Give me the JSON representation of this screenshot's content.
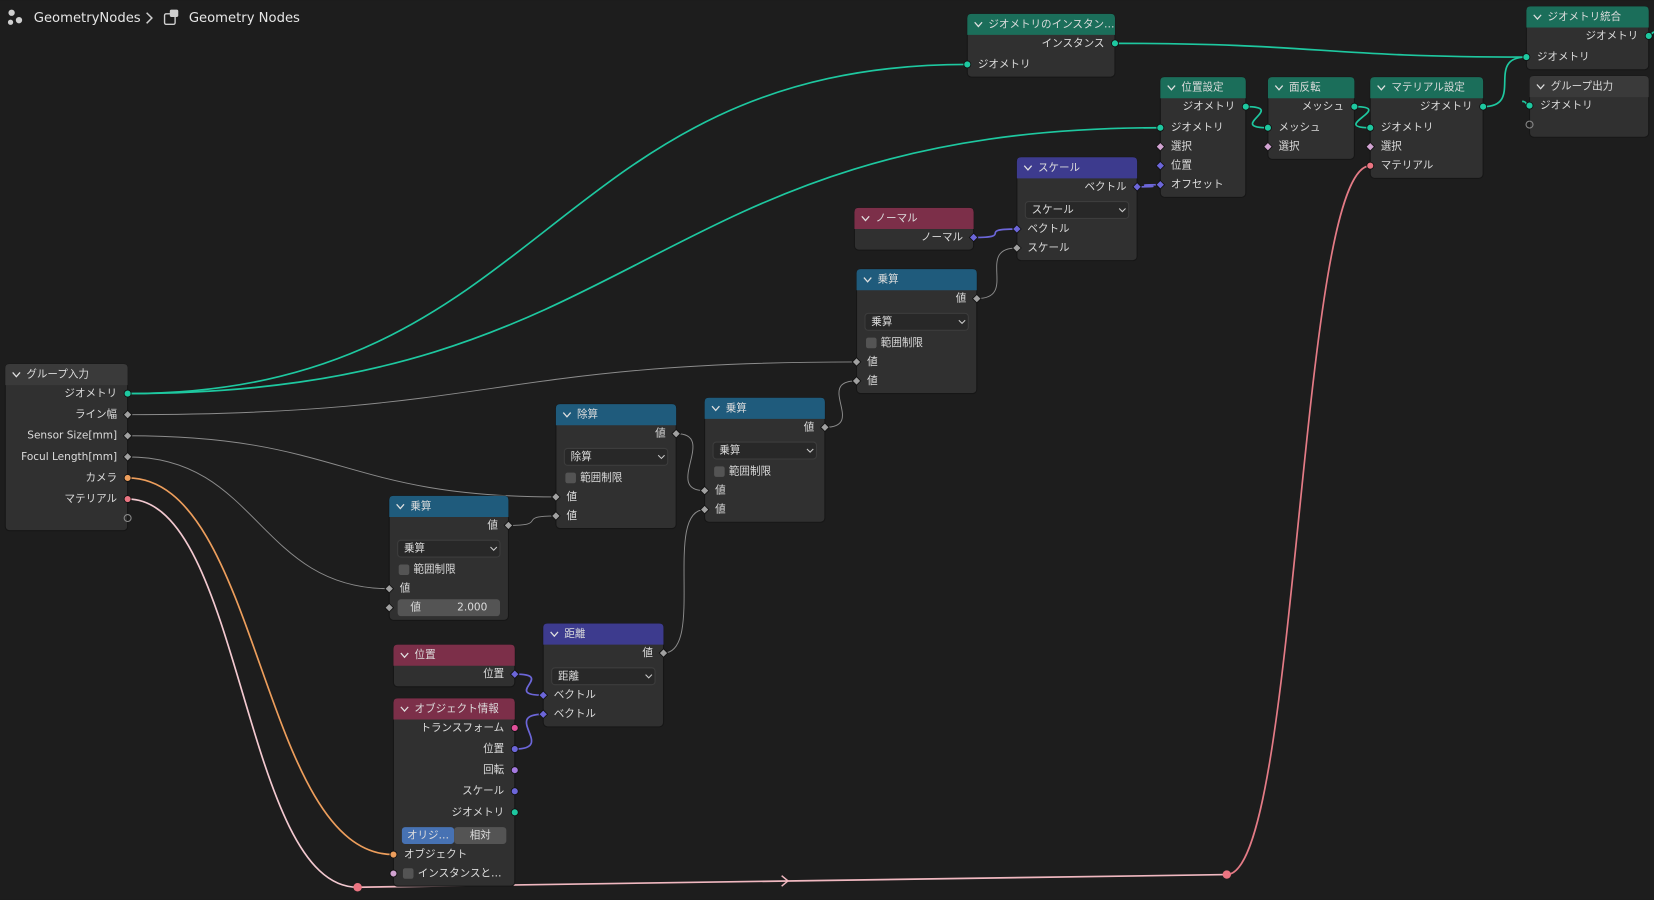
{
  "breadcrumb": [
    "GeometryNodes",
    "Geometry Nodes"
  ],
  "nodes": [
    {
      "title": "グループ入力",
      "outputs": [
        "ジオメトリ",
        "ライン幅",
        "Sensor Size[mm]",
        "Focul Length[mm]",
        "カメラ",
        "マテリアル"
      ]
    },
    {
      "title": "乗算",
      "outputs": [
        "値"
      ],
      "dropdown": "乗算",
      "checkbox": "範囲制限",
      "inputs": [
        "値"
      ],
      "field": {
        "label": "値",
        "value": "2.000"
      }
    },
    {
      "title": "除算",
      "outputs": [
        "値"
      ],
      "dropdown": "除算",
      "checkbox": "範囲制限",
      "inputs": [
        "値",
        "値"
      ]
    },
    {
      "title": "乗算",
      "outputs": [
        "値"
      ],
      "dropdown": "乗算",
      "checkbox": "範囲制限",
      "inputs": [
        "値",
        "値"
      ]
    },
    {
      "title": "乗算",
      "outputs": [
        "値"
      ],
      "dropdown": "乗算",
      "checkbox": "範囲制限",
      "inputs": [
        "値",
        "値"
      ]
    },
    {
      "title": "ノーマル",
      "outputs": [
        "ノーマル"
      ]
    },
    {
      "title": "スケール",
      "outputs": [
        "ベクトル"
      ],
      "dropdown": "スケール",
      "inputs": [
        "ベクトル",
        "スケール"
      ]
    },
    {
      "title": "位置設定",
      "outputs": [
        "ジオメトリ"
      ],
      "inputs": [
        "ジオメトリ",
        "選択",
        "位置",
        "オフセット"
      ]
    },
    {
      "title": "面反転",
      "outputs": [
        "メッシュ"
      ],
      "inputs": [
        "メッシュ",
        "選択"
      ]
    },
    {
      "title": "マテリアル設定",
      "outputs": [
        "ジオメトリ"
      ],
      "inputs": [
        "ジオメトリ",
        "選択",
        "マテリアル"
      ]
    },
    {
      "title": "ジオメトリのインスタン…",
      "outputs": [
        "インスタンス"
      ],
      "inputs": [
        "ジオメトリ"
      ]
    },
    {
      "title": "ジオメトリ統合",
      "outputs": [
        "ジオメトリ"
      ],
      "inputs": [
        "ジオメトリ"
      ]
    },
    {
      "title": "グループ出力",
      "inputs": [
        "ジオメトリ"
      ]
    },
    {
      "title": "位置",
      "outputs": [
        "位置"
      ]
    },
    {
      "title": "オブジェクト情報",
      "outputs": [
        "トランスフォーム",
        "位置",
        "回転",
        "スケール",
        "ジオメトリ"
      ],
      "toggle": [
        "オリジ…",
        "相対"
      ],
      "inputs": [
        "オブジェクト",
        "インスタンスと…"
      ]
    },
    {
      "title": "距離",
      "outputs": [
        "値"
      ],
      "dropdown": "距離",
      "inputs": [
        "ベクトル",
        "ベクトル"
      ]
    }
  ]
}
